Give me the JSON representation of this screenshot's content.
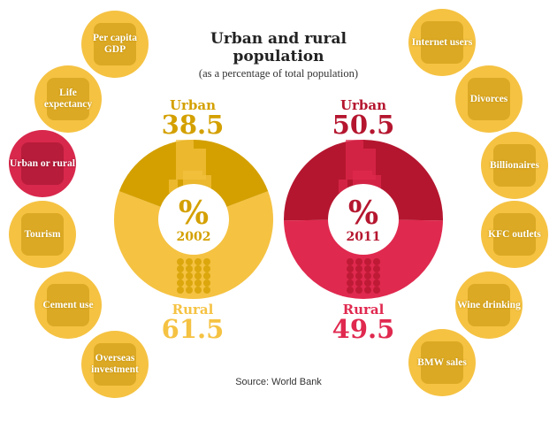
{
  "title_line1": "Urban and rural",
  "title_line2": "population",
  "subtitle": "(as a percentage of total population)",
  "source": "Source: World Bank",
  "left_topics": [
    {
      "label": "Per capita GDP",
      "icon": "person-icon"
    },
    {
      "label": "Life expectancy",
      "icon": "baby-icon"
    },
    {
      "label": "Urban or rural",
      "icon": "city-icon",
      "active": true
    },
    {
      "label": "Tourism",
      "icon": "plane-palm-icon"
    },
    {
      "label": "Cement use",
      "icon": "cement-truck-icon"
    },
    {
      "label": "Overseas investment",
      "icon": "globe-icon"
    }
  ],
  "right_topics": [
    {
      "label": "Internet users",
      "icon": "laptop-icon"
    },
    {
      "label": "Divorces",
      "icon": "couple-icon"
    },
    {
      "label": "Billionaires",
      "icon": "money-stack-icon"
    },
    {
      "label": "KFC outlets",
      "icon": "chicken-icon"
    },
    {
      "label": "Wine drinking",
      "icon": "wine-bottle-icon"
    },
    {
      "label": "BMW sales",
      "icon": "car-icon"
    }
  ],
  "chart_data": {
    "type": "pie",
    "units": "%",
    "charts": [
      {
        "year": "2002",
        "urban_label": "Urban",
        "urban": 38.5,
        "rural_label": "Rural",
        "rural": 61.5,
        "urban_display": "38.5",
        "rural_display": "61.5",
        "colors": {
          "urban": "#d4a000",
          "rural": "#f5c242"
        }
      },
      {
        "year": "2011",
        "urban_label": "Urban",
        "urban": 50.5,
        "rural_label": "Rural",
        "rural": 49.5,
        "urban_display": "50.5",
        "rural_display": "49.5",
        "colors": {
          "urban": "#b5162f",
          "rural": "#e0294f"
        }
      }
    ],
    "center_symbol": "%"
  }
}
